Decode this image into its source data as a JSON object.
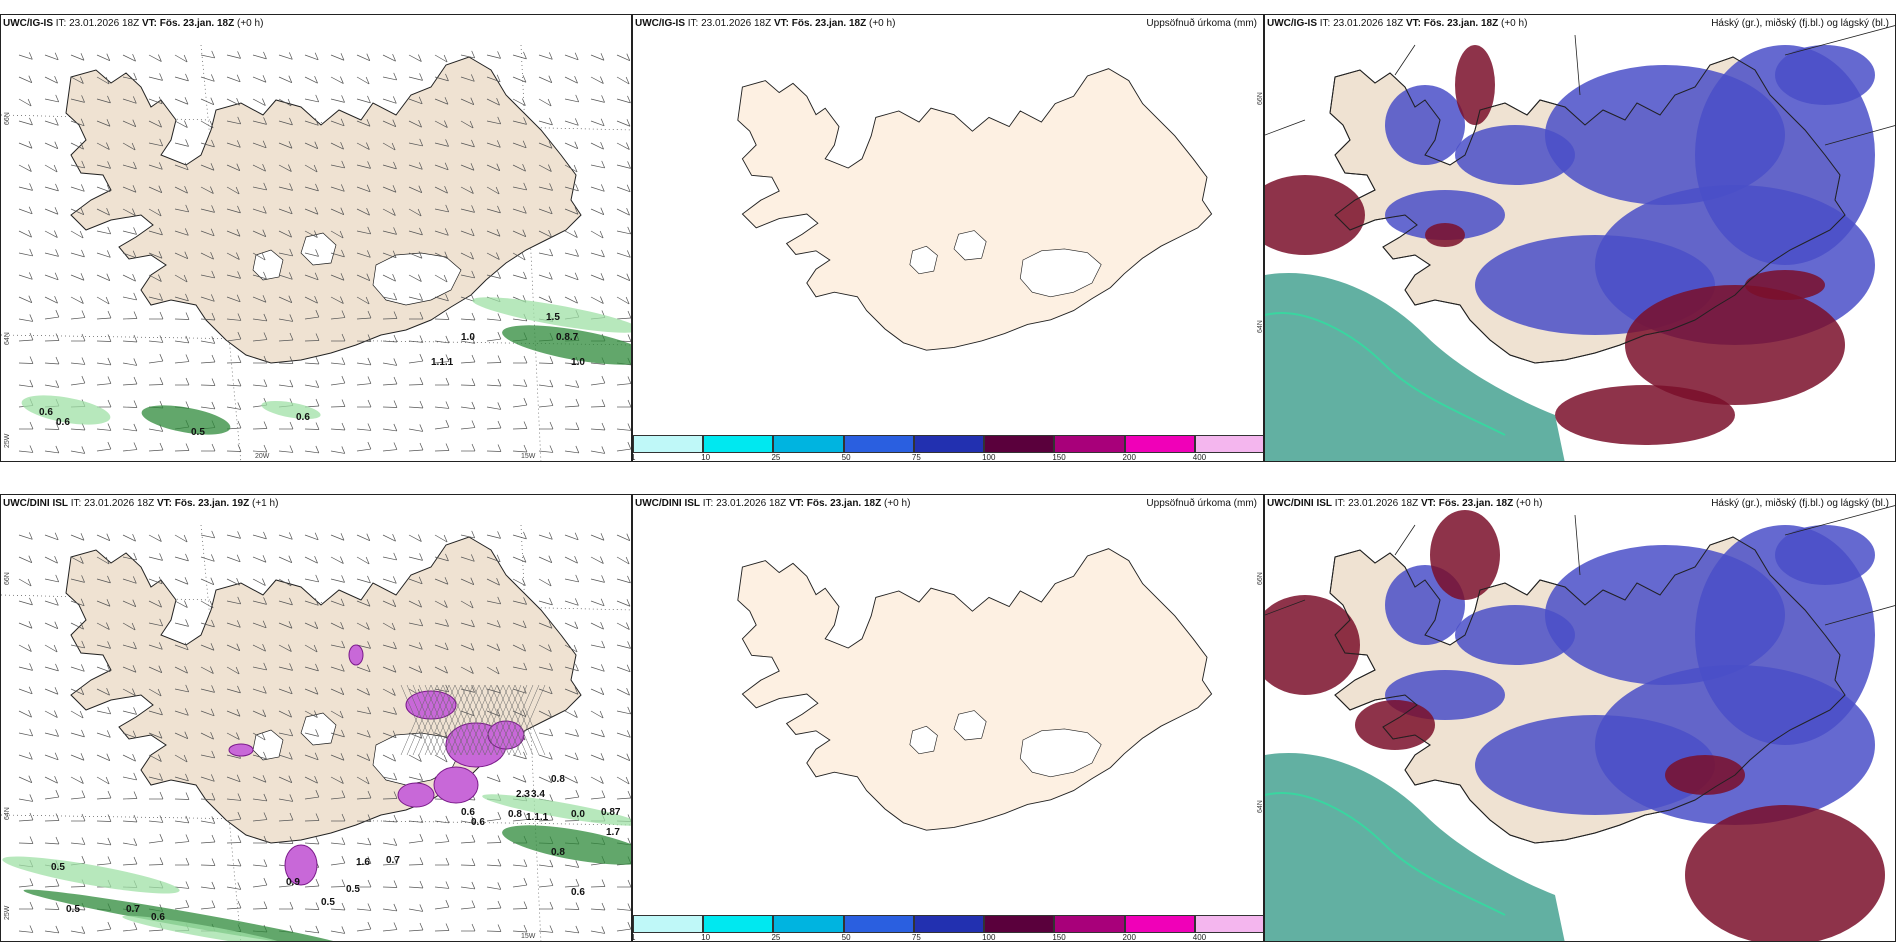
{
  "panels": [
    {
      "model": "UWC/IG-IS",
      "it": "IT: 23.01.2026 18Z",
      "vt_label": "VT:",
      "vt": "Fös. 23.jan. 18Z",
      "lead": "(+0 h)",
      "right_title": "",
      "kind": "precip_wind",
      "labels": [
        "1.5",
        "0.8.7",
        "1.0",
        "1.1.1",
        "0.6",
        "0.6",
        "0.5",
        "0.6",
        "1.0"
      ],
      "lat_labels": [
        "66N",
        "64N",
        "25W"
      ],
      "lon_labels": [
        "20W",
        "15W"
      ]
    },
    {
      "model": "UWC/IG-IS",
      "it": "IT: 23.01.2026 18Z",
      "vt_label": "VT:",
      "vt": "Fös. 23.jan. 18Z",
      "lead": "(+0 h)",
      "right_title": "Uppsöfnuð úrkoma (mm)",
      "kind": "accum",
      "lat_labels": [
        "66N",
        "64N"
      ]
    },
    {
      "model": "UWC/IG-IS",
      "it": "IT: 23.01.2026 18Z",
      "vt_label": "VT:",
      "vt": "Fös. 23.jan. 18Z",
      "lead": "(+0 h)",
      "right_title": "Háský (gr.), miðský (fj.bl.) og lágský (bl.)",
      "kind": "clouds"
    },
    {
      "model": "UWC/DINI ISL",
      "it": "IT: 23.01.2026 18Z",
      "vt_label": "VT:",
      "vt": "Fös. 23.jan. 19Z",
      "lead": "(+1 h)",
      "right_title": "",
      "kind": "precip_wind",
      "labels": [
        "0.8",
        "0.8",
        "1.7",
        "0.87",
        "0.8",
        "0.5",
        "0.5",
        "0.7",
        "0.6",
        "0.5",
        "0.7",
        "0.6",
        "0.9",
        "1.6",
        "0.5",
        "0.6",
        "0.6",
        "2.3",
        "3.4",
        "0.0",
        "1.1.1"
      ],
      "lat_labels": [
        "66N",
        "64N",
        "25W"
      ],
      "lon_labels": [
        "15W"
      ]
    },
    {
      "model": "UWC/DINI ISL",
      "it": "IT: 23.01.2026 18Z",
      "vt_label": "VT:",
      "vt": "Fös. 23.jan. 18Z",
      "lead": "(+0 h)",
      "right_title": "Uppsöfnuð úrkoma (mm)",
      "kind": "accum",
      "lat_labels": [
        "66N",
        "64N"
      ]
    },
    {
      "model": "UWC/DINI ISL",
      "it": "IT: 23.01.2026 18Z",
      "vt_label": "VT:",
      "vt": "Fös. 23.jan. 18Z",
      "lead": "(+0 h)",
      "right_title": "Háský (gr.), miðský (fj.bl.) og lágský (bl.)",
      "kind": "clouds"
    }
  ],
  "colorbar": {
    "labels": [
      "1",
      "10",
      "25",
      "50",
      "75",
      "100",
      "150",
      "200",
      "400"
    ],
    "colors": [
      "#bff8f8",
      "#00e8f0",
      "#00b4e0",
      "#2a5fe0",
      "#2230b0",
      "#5a003c",
      "#a8007a",
      "#f000b8",
      "#f4b6ee"
    ]
  },
  "colors": {
    "land": "#efe2d2",
    "land_accum": "#fdf0e2",
    "high_cloud": "#1f8f7a",
    "mid_cloud": "#4a4fc8",
    "low_cloud": "#7a0f2a"
  }
}
